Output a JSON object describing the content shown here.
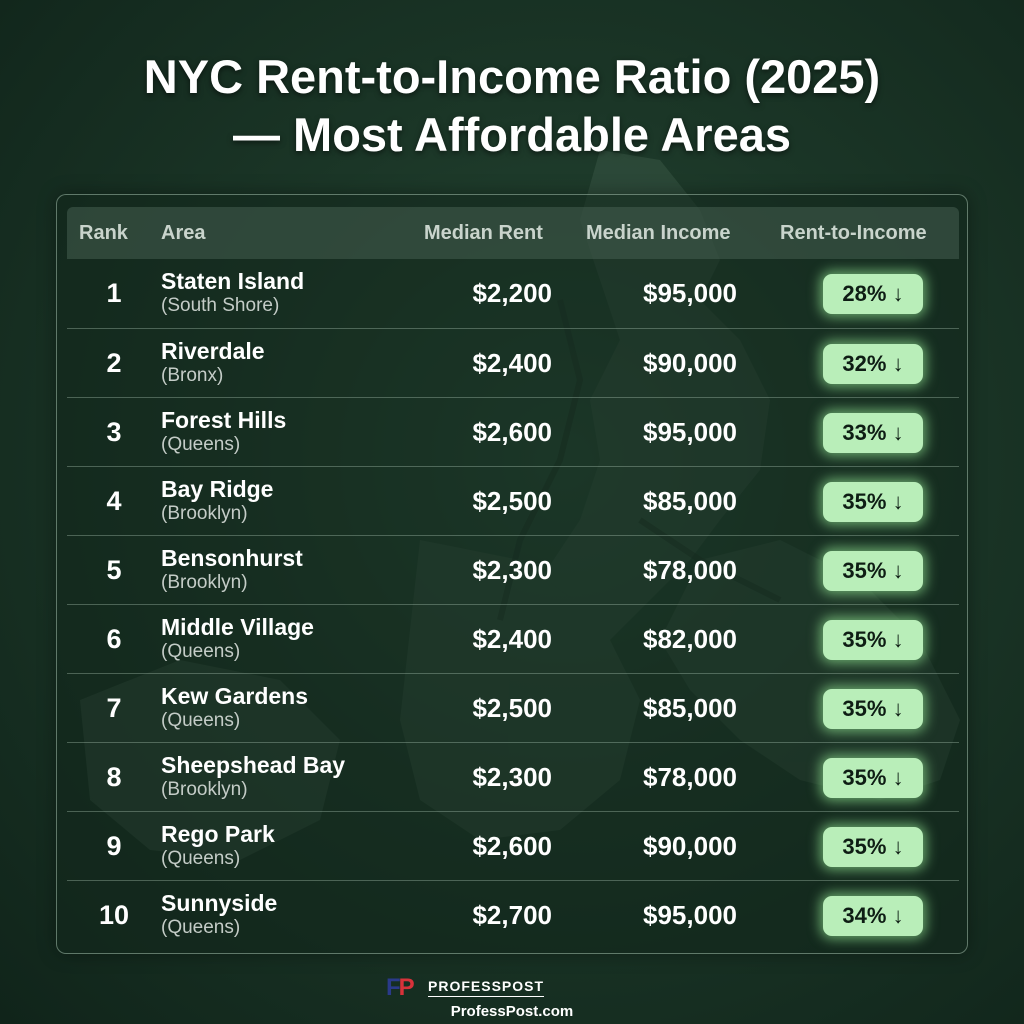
{
  "title": {
    "line1": "NYC Rent-to-Income Ratio (2025)",
    "line2": "— Most Affordable Areas"
  },
  "table": {
    "headers": {
      "rank": "Rank",
      "area": "Area",
      "rent": "Median Rent",
      "income": "Median Income",
      "ratio": "Rent-to-Income"
    },
    "rows": [
      {
        "rank": "1",
        "area": "Staten Island",
        "borough": "(South Shore)",
        "rent": "$2,200",
        "income": "$95,000",
        "ratio": "28% ↓"
      },
      {
        "rank": "2",
        "area": "Riverdale",
        "borough": "(Bronx)",
        "rent": "$2,400",
        "income": "$90,000",
        "ratio": "32% ↓"
      },
      {
        "rank": "3",
        "area": "Forest Hills",
        "borough": "(Queens)",
        "rent": "$2,600",
        "income": "$95,000",
        "ratio": "33% ↓"
      },
      {
        "rank": "4",
        "area": "Bay Ridge",
        "borough": "(Brooklyn)",
        "rent": "$2,500",
        "income": "$85,000",
        "ratio": "35% ↓"
      },
      {
        "rank": "5",
        "area": "Bensonhurst",
        "borough": "(Brooklyn)",
        "rent": "$2,300",
        "income": "$78,000",
        "ratio": "35% ↓"
      },
      {
        "rank": "6",
        "area": "Middle Village",
        "borough": "(Queens)",
        "rent": "$2,400",
        "income": "$82,000",
        "ratio": "35% ↓"
      },
      {
        "rank": "7",
        "area": "Kew Gardens",
        "borough": "(Queens)",
        "rent": "$2,500",
        "income": "$85,000",
        "ratio": "35% ↓"
      },
      {
        "rank": "8",
        "area": "Sheepshead Bay",
        "borough": "(Brooklyn)",
        "rent": "$2,300",
        "income": "$78,000",
        "ratio": "35% ↓"
      },
      {
        "rank": "9",
        "area": "Rego Park",
        "borough": "(Queens)",
        "rent": "$2,600",
        "income": "$90,000",
        "ratio": "35% ↓"
      },
      {
        "rank": "10",
        "area": "Sunnyside",
        "borough": "(Queens)",
        "rent": "$2,700",
        "income": "$95,000",
        "ratio": "34% ↓"
      }
    ]
  },
  "branding": {
    "name": "PROFESSPOST",
    "url": "ProfessPost.com",
    "logo_mark": [
      "F",
      "P"
    ]
  },
  "colors": {
    "background": "#1b3627",
    "badge": "#b9eeb9",
    "badge_glow": "#96eb96",
    "logo_blue": "#2a3a8a",
    "logo_red": "#d8323a"
  }
}
